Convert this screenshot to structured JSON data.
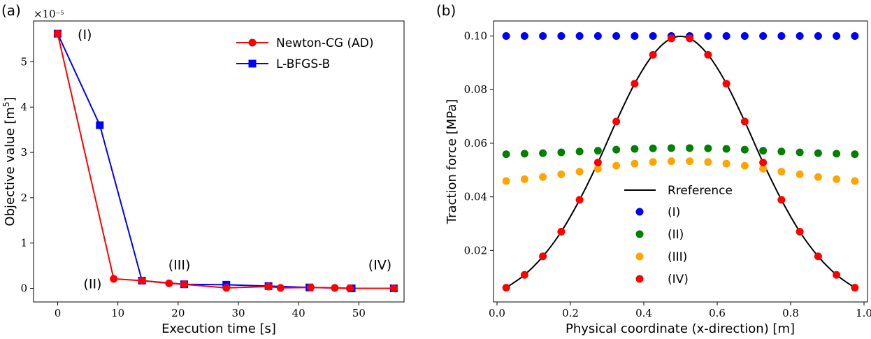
{
  "chart_data": [
    {
      "type": "line",
      "panel_label": "(a)",
      "xlabel": "Execution time [s]",
      "ylabel": "Objective value [m",
      "ylabel_sup": "5",
      "ylabel_end": "]",
      "y_scale_label": "×10",
      "y_scale_exp": "−5",
      "xlim": [
        -4,
        57.5
      ],
      "ylim": [
        -0.3,
        5.9
      ],
      "xticks": [
        0,
        10,
        20,
        30,
        40,
        50
      ],
      "yticks": [
        0,
        1,
        2,
        3,
        4,
        5
      ],
      "legend_position": "top-right",
      "series": [
        {
          "name": "Newton-CG (AD)",
          "color": "#ff0000",
          "marker": "circle",
          "x": [
            0,
            9.3,
            14,
            18.5,
            21,
            28,
            35,
            37,
            42,
            46,
            48.5,
            55.8
          ],
          "y": [
            5.62,
            0.21,
            0.17,
            0.11,
            0.09,
            0.01,
            0.04,
            0.01,
            0.02,
            0.01,
            0.0,
            0.0
          ]
        },
        {
          "name": "L-BFGS-B",
          "color": "#0000ff",
          "marker": "square",
          "x": [
            0,
            7,
            14,
            21,
            28,
            35,
            41.8,
            48.8,
            55.8
          ],
          "y": [
            5.62,
            3.6,
            0.17,
            0.09,
            0.08,
            0.05,
            0.02,
            0.0,
            0.0
          ]
        }
      ],
      "annotations": [
        {
          "text": "(I)",
          "x": 4.5,
          "y": 5.5
        },
        {
          "text": "(II)",
          "x": 5.8,
          "y": 0.0
        },
        {
          "text": "(III)",
          "x": 20.2,
          "y": 0.42
        },
        {
          "text": "(IV)",
          "x": 53.5,
          "y": 0.42
        }
      ]
    },
    {
      "type": "scatter",
      "panel_label": "(b)",
      "xlabel": "Physical coordinate (x-direction) [m]",
      "ylabel": "Traction force [MPa]",
      "xlim": [
        -0.0095,
        1.0095
      ],
      "ylim": [
        0.0008,
        0.1056
      ],
      "xticks": [
        "0.0",
        "0.2",
        "0.4",
        "0.6",
        "0.8",
        "1.0"
      ],
      "yticks": [
        "0.02",
        "0.04",
        "0.06",
        "0.08",
        "0.10"
      ],
      "legend_position": "lower-center",
      "x": [
        0.025,
        0.075,
        0.125,
        0.175,
        0.225,
        0.275,
        0.325,
        0.375,
        0.425,
        0.475,
        0.525,
        0.575,
        0.625,
        0.675,
        0.725,
        0.775,
        0.825,
        0.875,
        0.925,
        0.975
      ],
      "reference": {
        "name": "Rreference",
        "color": "#000000",
        "values": [
          0.0061,
          0.0109,
          0.0178,
          0.027,
          0.0389,
          0.0528,
          0.0681,
          0.0822,
          0.093,
          0.0991,
          0.0991,
          0.093,
          0.0822,
          0.0681,
          0.0528,
          0.0389,
          0.027,
          0.0178,
          0.0109,
          0.0061
        ]
      },
      "series": [
        {
          "name": "(I)",
          "color": "#0000ff",
          "values": [
            0.1,
            0.1,
            0.1,
            0.1,
            0.1,
            0.1,
            0.1,
            0.1,
            0.1,
            0.1,
            0.1,
            0.1,
            0.1,
            0.1,
            0.1,
            0.1,
            0.1,
            0.1,
            0.1,
            0.1
          ]
        },
        {
          "name": "(II)",
          "color": "#008000",
          "values": [
            0.0559,
            0.0561,
            0.0563,
            0.0566,
            0.0569,
            0.0572,
            0.0576,
            0.0579,
            0.0581,
            0.0582,
            0.0582,
            0.0581,
            0.0579,
            0.0576,
            0.0572,
            0.0569,
            0.0566,
            0.0563,
            0.0561,
            0.0559
          ]
        },
        {
          "name": "(III)",
          "color": "#ffa500",
          "values": [
            0.0459,
            0.0466,
            0.0474,
            0.0484,
            0.0494,
            0.0505,
            0.0516,
            0.0524,
            0.053,
            0.0533,
            0.0533,
            0.053,
            0.0524,
            0.0516,
            0.0505,
            0.0494,
            0.0484,
            0.0474,
            0.0466,
            0.0459
          ]
        },
        {
          "name": "(IV)",
          "color": "#ff0000",
          "values": [
            0.0061,
            0.0109,
            0.0178,
            0.027,
            0.0389,
            0.0528,
            0.0681,
            0.0822,
            0.093,
            0.0991,
            0.0991,
            0.093,
            0.0822,
            0.0681,
            0.0528,
            0.0389,
            0.027,
            0.0178,
            0.0109,
            0.0061
          ]
        }
      ]
    }
  ]
}
